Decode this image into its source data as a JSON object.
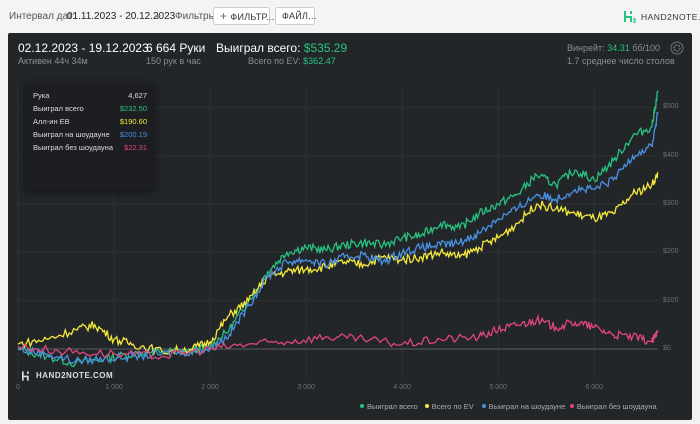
{
  "topbar": {
    "date_label": "Интервал дат:",
    "date_range": "01.11.2023 - 20.12.2023",
    "filters_label": "Фильтры:",
    "filter_button": "ФИЛЬТР...",
    "file_button": "ФАЙЛ...",
    "logo_text": "HAND2NOTE.COM"
  },
  "summary": {
    "range": "02.12.2023 - 19.12.2023",
    "active": "Активен 44ч 34м",
    "hands": "6 664 Руки",
    "hands_per_hour": "150 рук в час",
    "won_label": "Выиграл всего:",
    "won_value": "$535.29",
    "ev_label": "Всего по EV:",
    "ev_value": "$362.47",
    "winrate_label": "Винрейт:",
    "winrate_value": "34.31",
    "winrate_unit": "бб/100",
    "tables": "1.7 среднее число столов"
  },
  "tooltip": {
    "rows": [
      {
        "label": "Рука",
        "value": "4,627",
        "color": "#dddddd"
      },
      {
        "label": "Выиграл всего",
        "value": "$232.50",
        "color": "#28c27f"
      },
      {
        "label": "Алл-ин ЕВ",
        "value": "$190.60",
        "color": "#f5e93a"
      },
      {
        "label": "Выиграл на шоудауне",
        "value": "$200.19",
        "color": "#4a90e2"
      },
      {
        "label": "Выиграл без шоудауна",
        "value": "$22.31",
        "color": "#e0467a"
      }
    ]
  },
  "watermark": "HAND2NOTE.COM",
  "chart_data": {
    "type": "line",
    "x_ticks": [
      "0",
      "1 000",
      "2 000",
      "3 000",
      "4 000",
      "5 000",
      "6 000"
    ],
    "y_ticks": [
      "$0",
      "$100",
      "$200",
      "$300",
      "$400",
      "$500"
    ],
    "xlim": [
      0,
      6664
    ],
    "ylim": [
      -60,
      540
    ],
    "series": [
      {
        "name": "Выиграл всего",
        "color": "#28c27f",
        "x": [
          0,
          300,
          600,
          900,
          1200,
          1500,
          1800,
          2000,
          2200,
          2400,
          2600,
          2800,
          3000,
          3200,
          3400,
          3600,
          3800,
          4000,
          4200,
          4400,
          4600,
          4800,
          5000,
          5200,
          5400,
          5600,
          5800,
          6000,
          6200,
          6400,
          6600,
          6664
        ],
        "y": [
          0,
          -15,
          -30,
          -20,
          -10,
          -5,
          -5,
          5,
          40,
          100,
          160,
          200,
          210,
          205,
          215,
          220,
          215,
          230,
          235,
          260,
          250,
          280,
          300,
          320,
          360,
          340,
          370,
          350,
          390,
          440,
          460,
          535
        ]
      },
      {
        "name": "Всего по EV",
        "color": "#f5e93a",
        "x": [
          0,
          300,
          600,
          800,
          1000,
          1200,
          1500,
          1800,
          2000,
          2200,
          2400,
          2600,
          2800,
          3000,
          3200,
          3400,
          3600,
          3800,
          4000,
          4200,
          4400,
          4600,
          4800,
          5000,
          5200,
          5400,
          5600,
          5800,
          6000,
          6200,
          6400,
          6600,
          6664
        ],
        "y": [
          10,
          20,
          40,
          50,
          20,
          10,
          -5,
          0,
          15,
          70,
          100,
          150,
          160,
          165,
          170,
          180,
          175,
          190,
          185,
          190,
          200,
          190,
          210,
          230,
          260,
          300,
          290,
          280,
          270,
          280,
          320,
          340,
          362
        ]
      },
      {
        "name": "Выиграл на шоудауне",
        "color": "#4a90e2",
        "x": [
          0,
          300,
          600,
          900,
          1200,
          1500,
          1800,
          2000,
          2200,
          2400,
          2600,
          2800,
          3000,
          3200,
          3400,
          3600,
          3800,
          4000,
          4200,
          4400,
          4600,
          4800,
          5000,
          5200,
          5400,
          5600,
          5800,
          6000,
          6200,
          6400,
          6600,
          6664
        ],
        "y": [
          0,
          -10,
          -25,
          -20,
          -15,
          -10,
          -5,
          0,
          30,
          90,
          150,
          180,
          185,
          175,
          190,
          195,
          180,
          200,
          210,
          215,
          220,
          240,
          270,
          290,
          320,
          310,
          330,
          330,
          350,
          400,
          420,
          490
        ]
      },
      {
        "name": "Выиграл без шоудауна",
        "color": "#e0467a",
        "x": [
          0,
          500,
          1000,
          1500,
          2000,
          2400,
          2800,
          3200,
          3600,
          4000,
          4400,
          4800,
          5000,
          5200,
          5400,
          5600,
          5800,
          6000,
          6200,
          6400,
          6600,
          6664
        ],
        "y": [
          5,
          -5,
          -10,
          -15,
          0,
          10,
          15,
          25,
          20,
          10,
          20,
          25,
          40,
          50,
          60,
          45,
          55,
          45,
          30,
          25,
          15,
          35
        ]
      }
    ],
    "legend": "bottom-right",
    "grid": true
  }
}
